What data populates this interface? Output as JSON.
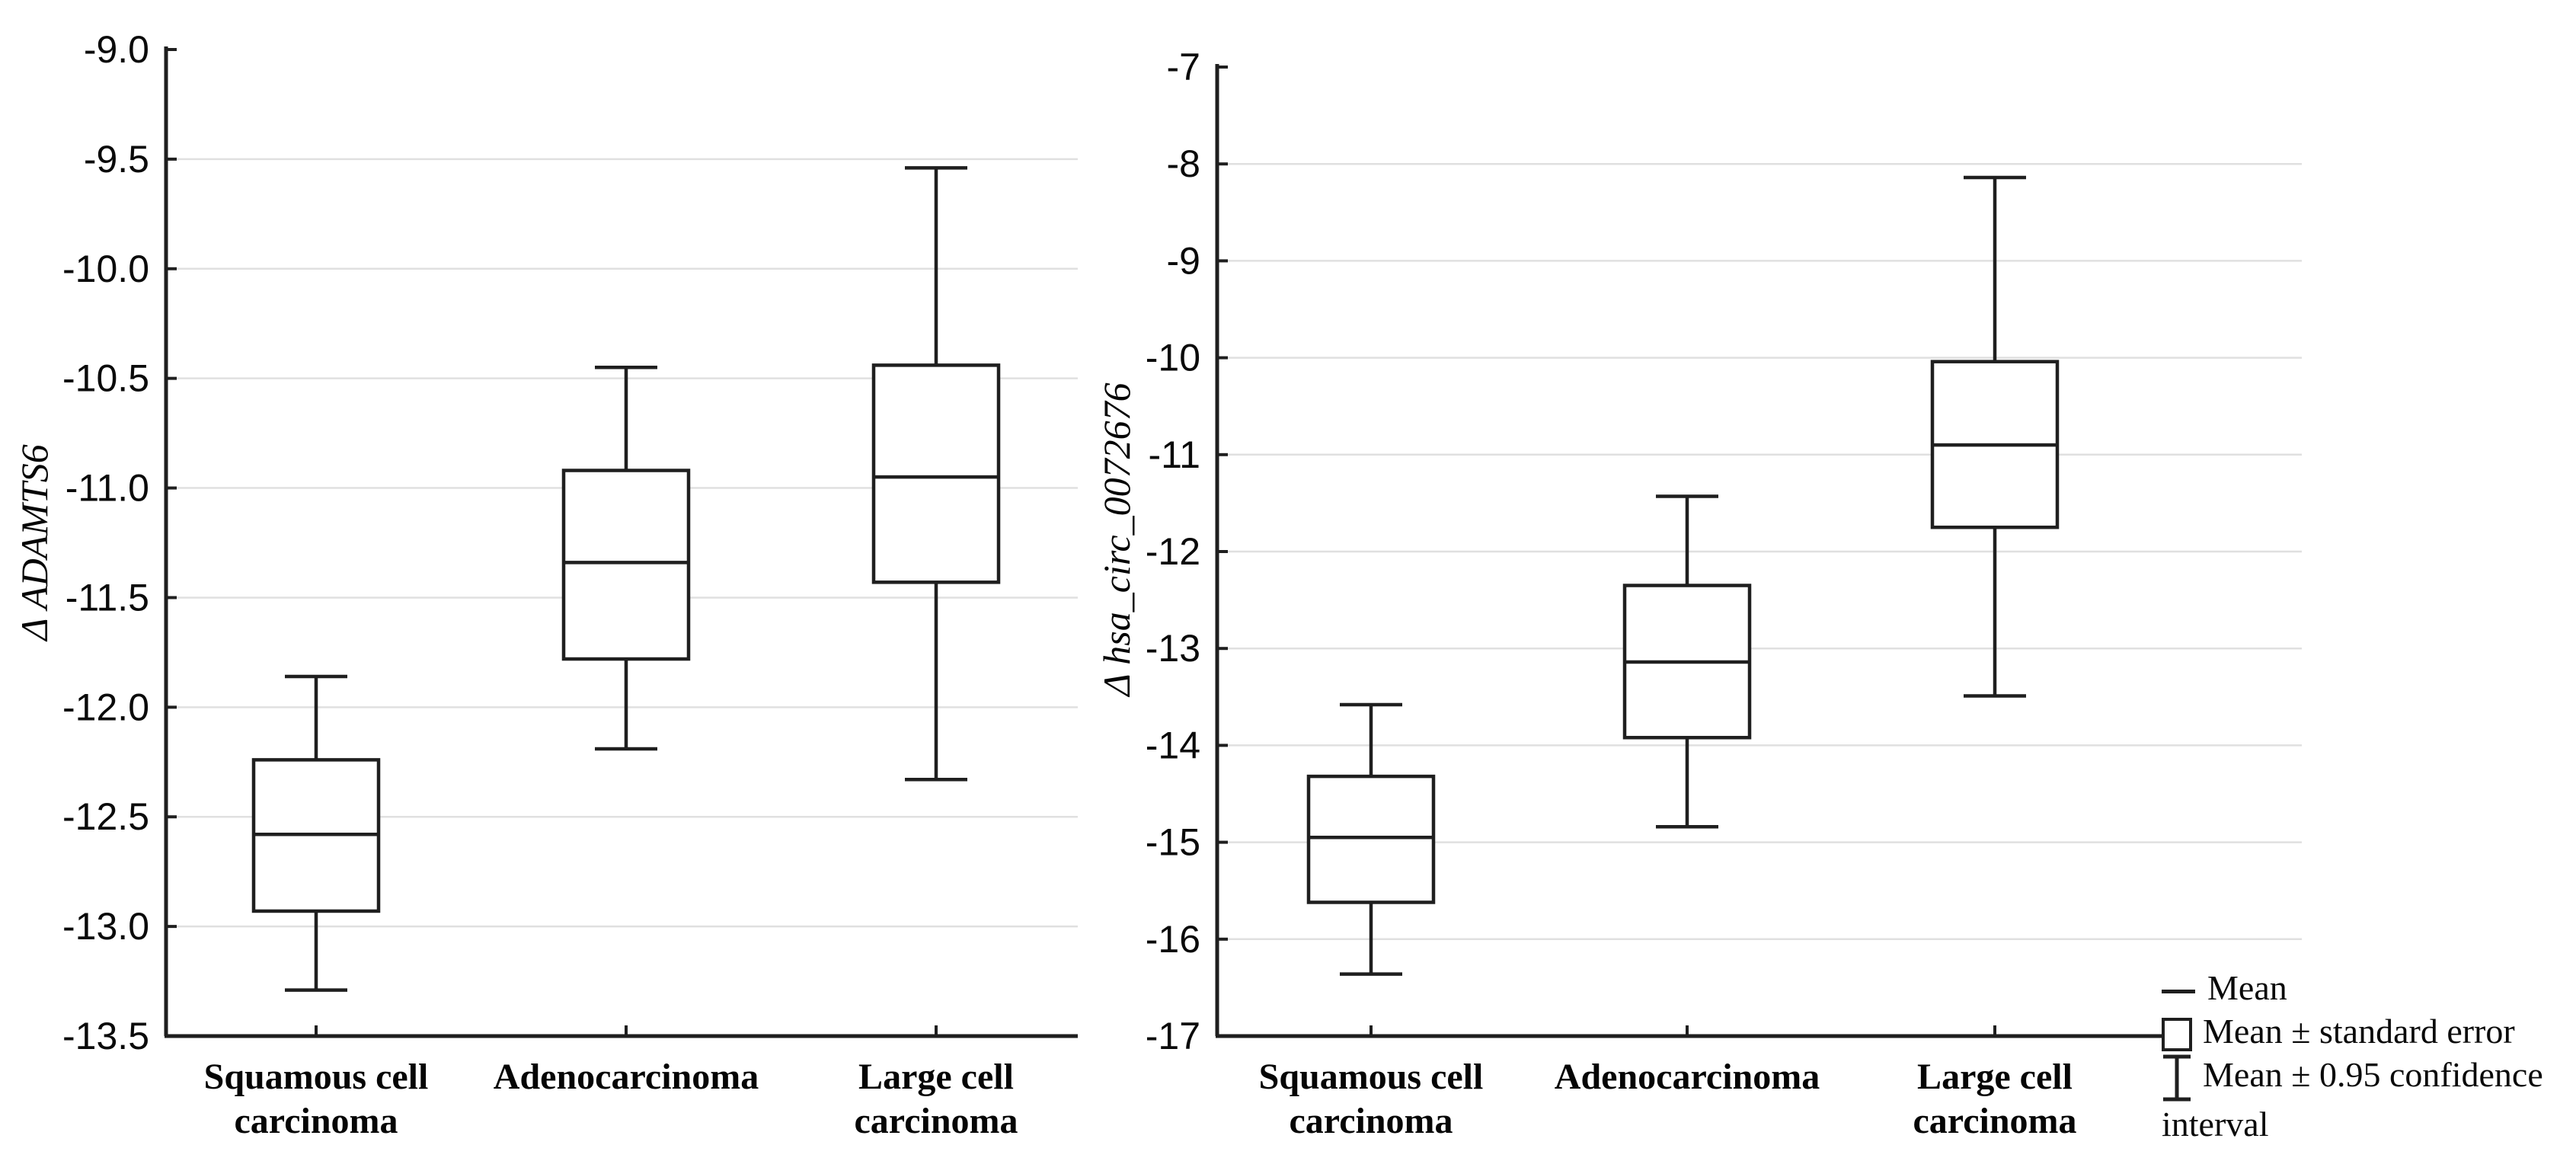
{
  "figure": {
    "background": "#ffffff",
    "description": "Two box-and-whisker panels comparing expression levels across lung cancer histologic types"
  },
  "colors": {
    "stroke": "#1f1f1f",
    "grid": "#e0e0e0",
    "text": "#000000",
    "background": "#ffffff"
  },
  "legend": {
    "items": [
      {
        "symbol": "mean-line",
        "label": "Mean"
      },
      {
        "symbol": "se-box",
        "label": "Mean ± standard error"
      },
      {
        "symbol": "ci-whisker",
        "label": "Mean ± 0.95 confidence interval"
      }
    ]
  },
  "chart_data": [
    {
      "type": "box",
      "title": "",
      "xlabel": "",
      "ylabel": "Δ ADAMTS6",
      "ylim": [
        -13.5,
        -9.0
      ],
      "grid": true,
      "yticks": [
        -9.0,
        -9.5,
        -10.0,
        -10.5,
        -11.0,
        -11.5,
        -12.0,
        -12.5,
        -13.0,
        -13.5
      ],
      "ytick_labels": [
        "-9.0",
        "-9.5",
        "-10.0",
        "-10.5",
        "-11.0",
        "-11.5",
        "-12.0",
        "-12.5",
        "-13.0",
        "-13.5"
      ],
      "categories": [
        "Squamous cell carcinoma",
        "Adenocarcinoma",
        "Large cell carcinoma"
      ],
      "category_label_lines": [
        [
          "Squamous cell",
          "carcinoma"
        ],
        [
          "Adenocarcinoma"
        ],
        [
          "Large cell",
          "carcinoma"
        ]
      ],
      "series": [
        {
          "category": "Squamous cell carcinoma",
          "mean": -12.58,
          "se_upper": -12.24,
          "se_lower": -12.93,
          "ci_upper": -11.86,
          "ci_lower": -13.29
        },
        {
          "category": "Adenocarcinoma",
          "mean": -11.34,
          "se_upper": -10.92,
          "se_lower": -11.78,
          "ci_upper": -10.45,
          "ci_lower": -12.19
        },
        {
          "category": "Large cell carcinoma",
          "mean": -10.95,
          "se_upper": -10.44,
          "se_lower": -11.43,
          "ci_upper": -9.54,
          "ci_lower": -12.33
        }
      ]
    },
    {
      "type": "box",
      "title": "",
      "xlabel": "",
      "ylabel": "Δ hsa_circ_0072676",
      "ylim": [
        -17,
        -7
      ],
      "grid": true,
      "yticks": [
        -7,
        -8,
        -9,
        -10,
        -11,
        -12,
        -13,
        -14,
        -15,
        -16,
        -17
      ],
      "ytick_labels": [
        "-7",
        "-8",
        "-9",
        "-10",
        "-11",
        "-12",
        "-13",
        "-14",
        "-15",
        "-16",
        "-17"
      ],
      "categories": [
        "Squamous cell carcinoma",
        "Adenocarcinoma",
        "Large cell carcinoma"
      ],
      "category_label_lines": [
        [
          "Squamous cell",
          "carcinoma"
        ],
        [
          "Adenocarcinoma"
        ],
        [
          "Large cell",
          "carcinoma"
        ]
      ],
      "series": [
        {
          "category": "Squamous cell carcinoma",
          "mean": -14.95,
          "se_upper": -14.32,
          "se_lower": -15.62,
          "ci_upper": -13.58,
          "ci_lower": -16.36
        },
        {
          "category": "Adenocarcinoma",
          "mean": -13.14,
          "se_upper": -12.35,
          "se_lower": -13.92,
          "ci_upper": -11.43,
          "ci_lower": -14.84
        },
        {
          "category": "Large cell carcinoma",
          "mean": -10.9,
          "se_upper": -10.04,
          "se_lower": -11.75,
          "ci_upper": -8.14,
          "ci_lower": -13.49
        }
      ]
    }
  ]
}
